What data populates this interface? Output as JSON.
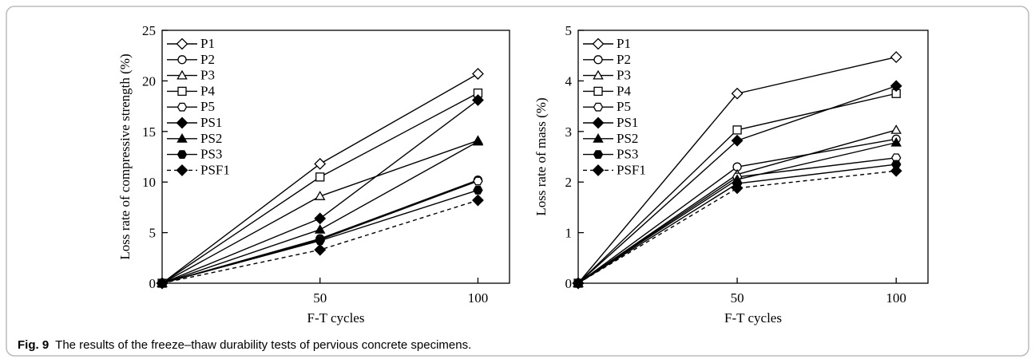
{
  "chart_data": [
    {
      "type": "line",
      "ylabel": "Loss rate of compressive strength (%)",
      "xlabel": "F-T cycles",
      "x": [
        0,
        50,
        100
      ],
      "xlim": [
        0,
        110
      ],
      "xticks": [
        50,
        100
      ],
      "ylim": [
        0,
        25
      ],
      "yticks": [
        0,
        5,
        10,
        15,
        20,
        25
      ],
      "legend": "upper left",
      "series": [
        {
          "name": "P1",
          "color": "#000000",
          "marker": "diamond",
          "filled": false,
          "dashed": false,
          "values": [
            0,
            11.8,
            20.7
          ]
        },
        {
          "name": "P2",
          "color": "#000000",
          "marker": "circle",
          "filled": false,
          "dashed": false,
          "values": [
            0,
            4.4,
            10.2
          ]
        },
        {
          "name": "P3",
          "color": "#000000",
          "marker": "triangle",
          "filled": false,
          "dashed": false,
          "values": [
            0,
            8.6,
            14.1
          ]
        },
        {
          "name": "P4",
          "color": "#000000",
          "marker": "square",
          "filled": false,
          "dashed": false,
          "values": [
            0,
            10.5,
            18.8
          ]
        },
        {
          "name": "P5",
          "color": "#000000",
          "marker": "hexagon",
          "filled": false,
          "dashed": false,
          "values": [
            0,
            4.3,
            10.1
          ]
        },
        {
          "name": "PS1",
          "color": "#000000",
          "marker": "diamond",
          "filled": true,
          "dashed": false,
          "values": [
            0,
            6.4,
            18.1
          ]
        },
        {
          "name": "PS2",
          "color": "#000000",
          "marker": "triangle",
          "filled": true,
          "dashed": false,
          "values": [
            0,
            5.3,
            14.0
          ]
        },
        {
          "name": "PS3",
          "color": "#000000",
          "marker": "hexagon",
          "filled": true,
          "dashed": false,
          "values": [
            0,
            4.2,
            9.2
          ]
        },
        {
          "name": "PSF1",
          "color": "#000000",
          "marker": "diamond",
          "filled": true,
          "dashed": true,
          "values": [
            0,
            3.3,
            8.2
          ]
        }
      ]
    },
    {
      "type": "line",
      "ylabel": "Loss rate of mass (%)",
      "xlabel": "F-T cycles",
      "x": [
        0,
        50,
        100
      ],
      "xlim": [
        0,
        110
      ],
      "xticks": [
        50,
        100
      ],
      "ylim": [
        0,
        5
      ],
      "yticks": [
        0,
        1,
        2,
        3,
        4,
        5
      ],
      "legend": "upper left",
      "series": [
        {
          "name": "P1",
          "color": "#000000",
          "marker": "diamond",
          "filled": false,
          "dashed": false,
          "values": [
            0,
            3.75,
            4.47
          ]
        },
        {
          "name": "P2",
          "color": "#000000",
          "marker": "circle",
          "filled": false,
          "dashed": false,
          "values": [
            0,
            2.3,
            2.85
          ]
        },
        {
          "name": "P3",
          "color": "#000000",
          "marker": "triangle",
          "filled": false,
          "dashed": false,
          "values": [
            0,
            2.15,
            3.03
          ]
        },
        {
          "name": "P4",
          "color": "#000000",
          "marker": "square",
          "filled": false,
          "dashed": false,
          "values": [
            0,
            3.03,
            3.75
          ]
        },
        {
          "name": "P5",
          "color": "#000000",
          "marker": "hexagon",
          "filled": false,
          "dashed": false,
          "values": [
            0,
            2.1,
            2.48
          ]
        },
        {
          "name": "PS1",
          "color": "#000000",
          "marker": "diamond",
          "filled": true,
          "dashed": false,
          "values": [
            0,
            2.82,
            3.9
          ]
        },
        {
          "name": "PS2",
          "color": "#000000",
          "marker": "triangle",
          "filled": true,
          "dashed": false,
          "values": [
            0,
            2.05,
            2.78
          ]
        },
        {
          "name": "PS3",
          "color": "#000000",
          "marker": "hexagon",
          "filled": true,
          "dashed": false,
          "values": [
            0,
            1.97,
            2.35
          ]
        },
        {
          "name": "PSF1",
          "color": "#000000",
          "marker": "diamond",
          "filled": true,
          "dashed": true,
          "values": [
            0,
            1.88,
            2.22
          ]
        }
      ]
    }
  ],
  "caption": {
    "label": "Fig. 9",
    "text": "The results of the freeze–thaw durability tests of pervious concrete specimens."
  }
}
